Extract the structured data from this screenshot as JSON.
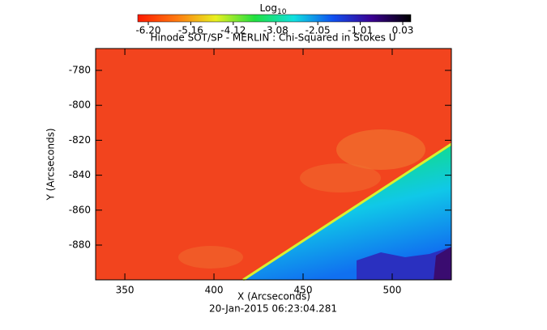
{
  "chart_data": {
    "type": "image",
    "title": "Hinode SOT/SP - MERLIN : Chi-Squared in Stokes U",
    "x_label": "X (Arcseconds)",
    "y_label": "Y (Arcseconds)",
    "timestamp": "20-Jan-2015 06:23:04.281",
    "colorbar_label": {
      "base": "Log",
      "subscript": "10"
    },
    "colorbar_ticks": [
      {
        "value": -6.2,
        "label": "-6.20"
      },
      -5.16,
      -4.12,
      -3.08,
      -2.05,
      -1.01,
      0.03
    ],
    "colormap": [
      "#ff1a00",
      "#ff7a10",
      "#e8f020",
      "#20e040",
      "#10e0e0",
      "#1050f0",
      "#3a0090",
      "#000000"
    ],
    "xlim": [
      333.6,
      533.2
    ],
    "xticks": [
      350,
      400,
      450,
      500
    ],
    "ylim": [
      -899.9,
      -767.5
    ],
    "yticks": [
      -780,
      -800,
      -820,
      -840,
      -860,
      -880
    ]
  }
}
